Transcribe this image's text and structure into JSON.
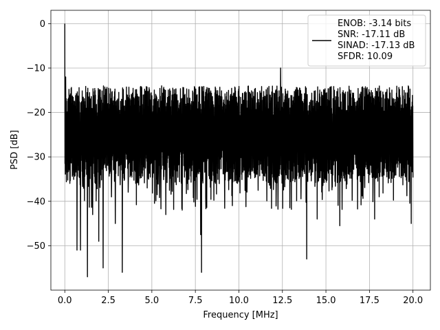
{
  "chart_data": {
    "type": "line",
    "title": "",
    "xlabel": "Frequency [MHz]",
    "ylabel": "PSD [dB]",
    "xlim": [
      -0.8,
      21.0
    ],
    "ylim": [
      -60,
      3
    ],
    "xticks": [
      0.0,
      2.5,
      5.0,
      7.5,
      10.0,
      12.5,
      15.0,
      17.5,
      20.0
    ],
    "xtick_labels": [
      "0.0",
      "2.5",
      "5.0",
      "7.5",
      "10.0",
      "12.5",
      "15.0",
      "17.5",
      "20.0"
    ],
    "yticks": [
      0,
      -10,
      -20,
      -30,
      -40,
      -50
    ],
    "ytick_labels": [
      "0",
      "−10",
      "−20",
      "−30",
      "−40",
      "−50"
    ],
    "grid": true,
    "legend_placement": "top-right",
    "series": [
      {
        "color": "#000000",
        "noise_floor_db": [
          -36,
          -14
        ],
        "num_points": 2000,
        "x_range": [
          0.0,
          20.0
        ],
        "peaks": [
          {
            "x": 0.0,
            "y": 0.0
          },
          {
            "x": 0.05,
            "y": -12.0
          },
          {
            "x": 12.4,
            "y": -10.0
          },
          {
            "x": 1.3,
            "y": -57.0
          },
          {
            "x": 7.85,
            "y": -56.0
          },
          {
            "x": 3.3,
            "y": -56.0
          },
          {
            "x": 2.2,
            "y": -55.0
          },
          {
            "x": 13.9,
            "y": -53.0
          },
          {
            "x": 0.7,
            "y": -51.0
          },
          {
            "x": 0.9,
            "y": -51.0
          },
          {
            "x": 1.95,
            "y": -49.0
          },
          {
            "x": 7.8,
            "y": -47.5
          },
          {
            "x": 15.8,
            "y": -45.5
          },
          {
            "x": 19.9,
            "y": -45.0
          },
          {
            "x": 2.9,
            "y": -45.0
          },
          {
            "x": 14.5,
            "y": -44.0
          },
          {
            "x": 17.8,
            "y": -44.0
          },
          {
            "x": 5.8,
            "y": -43.0
          },
          {
            "x": 1.6,
            "y": -43.0
          }
        ]
      }
    ],
    "legend": {
      "lines": [
        "ENOB: -3.14 bits",
        "SNR: -17.11 dB",
        "SINAD: -17.13 dB",
        "SFDR: 10.09"
      ],
      "line_color": "#000000"
    }
  }
}
